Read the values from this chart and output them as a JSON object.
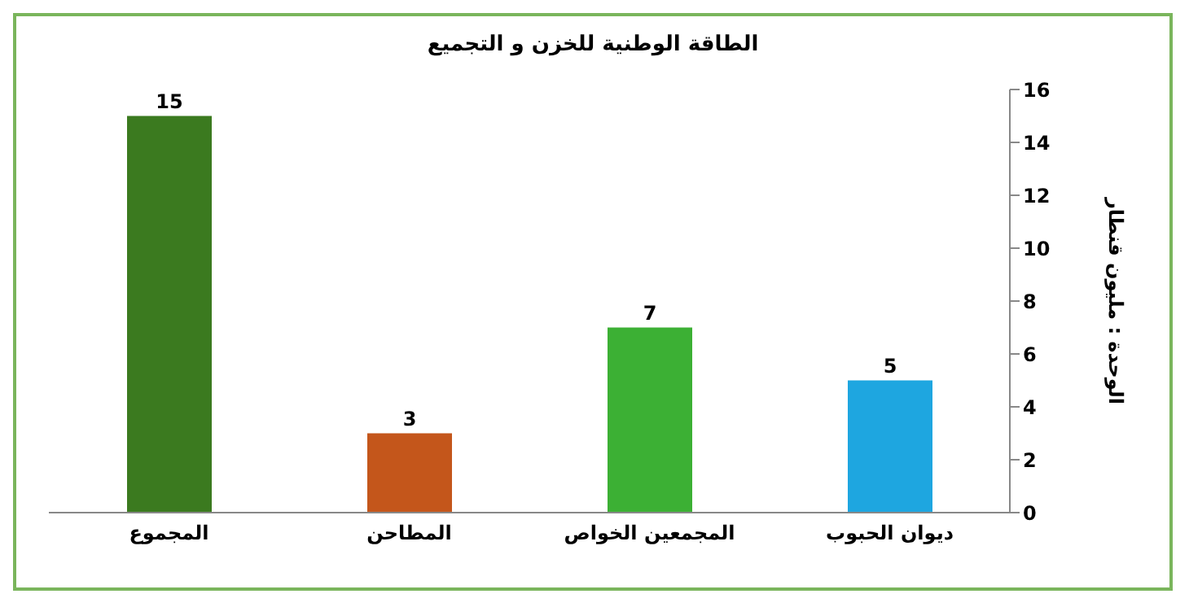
{
  "chart_data": {
    "type": "bar",
    "title": "الطاقة الوطنية للخزن و التجميع",
    "ylabel": "الوحدة : مليون قنطار",
    "categories": [
      "المجموع",
      "المطاحن",
      "المجمعين الخواص",
      "ديوان الحبوب"
    ],
    "values": [
      15,
      3,
      7,
      5
    ],
    "colors": [
      "#3b7a1f",
      "#c4561b",
      "#3cb034",
      "#1ea6e0"
    ],
    "ylim": [
      0,
      16
    ],
    "yticks": [
      0,
      2,
      4,
      6,
      8,
      10,
      12,
      14,
      16
    ],
    "grid": false,
    "legend": false,
    "data_labels": true
  }
}
